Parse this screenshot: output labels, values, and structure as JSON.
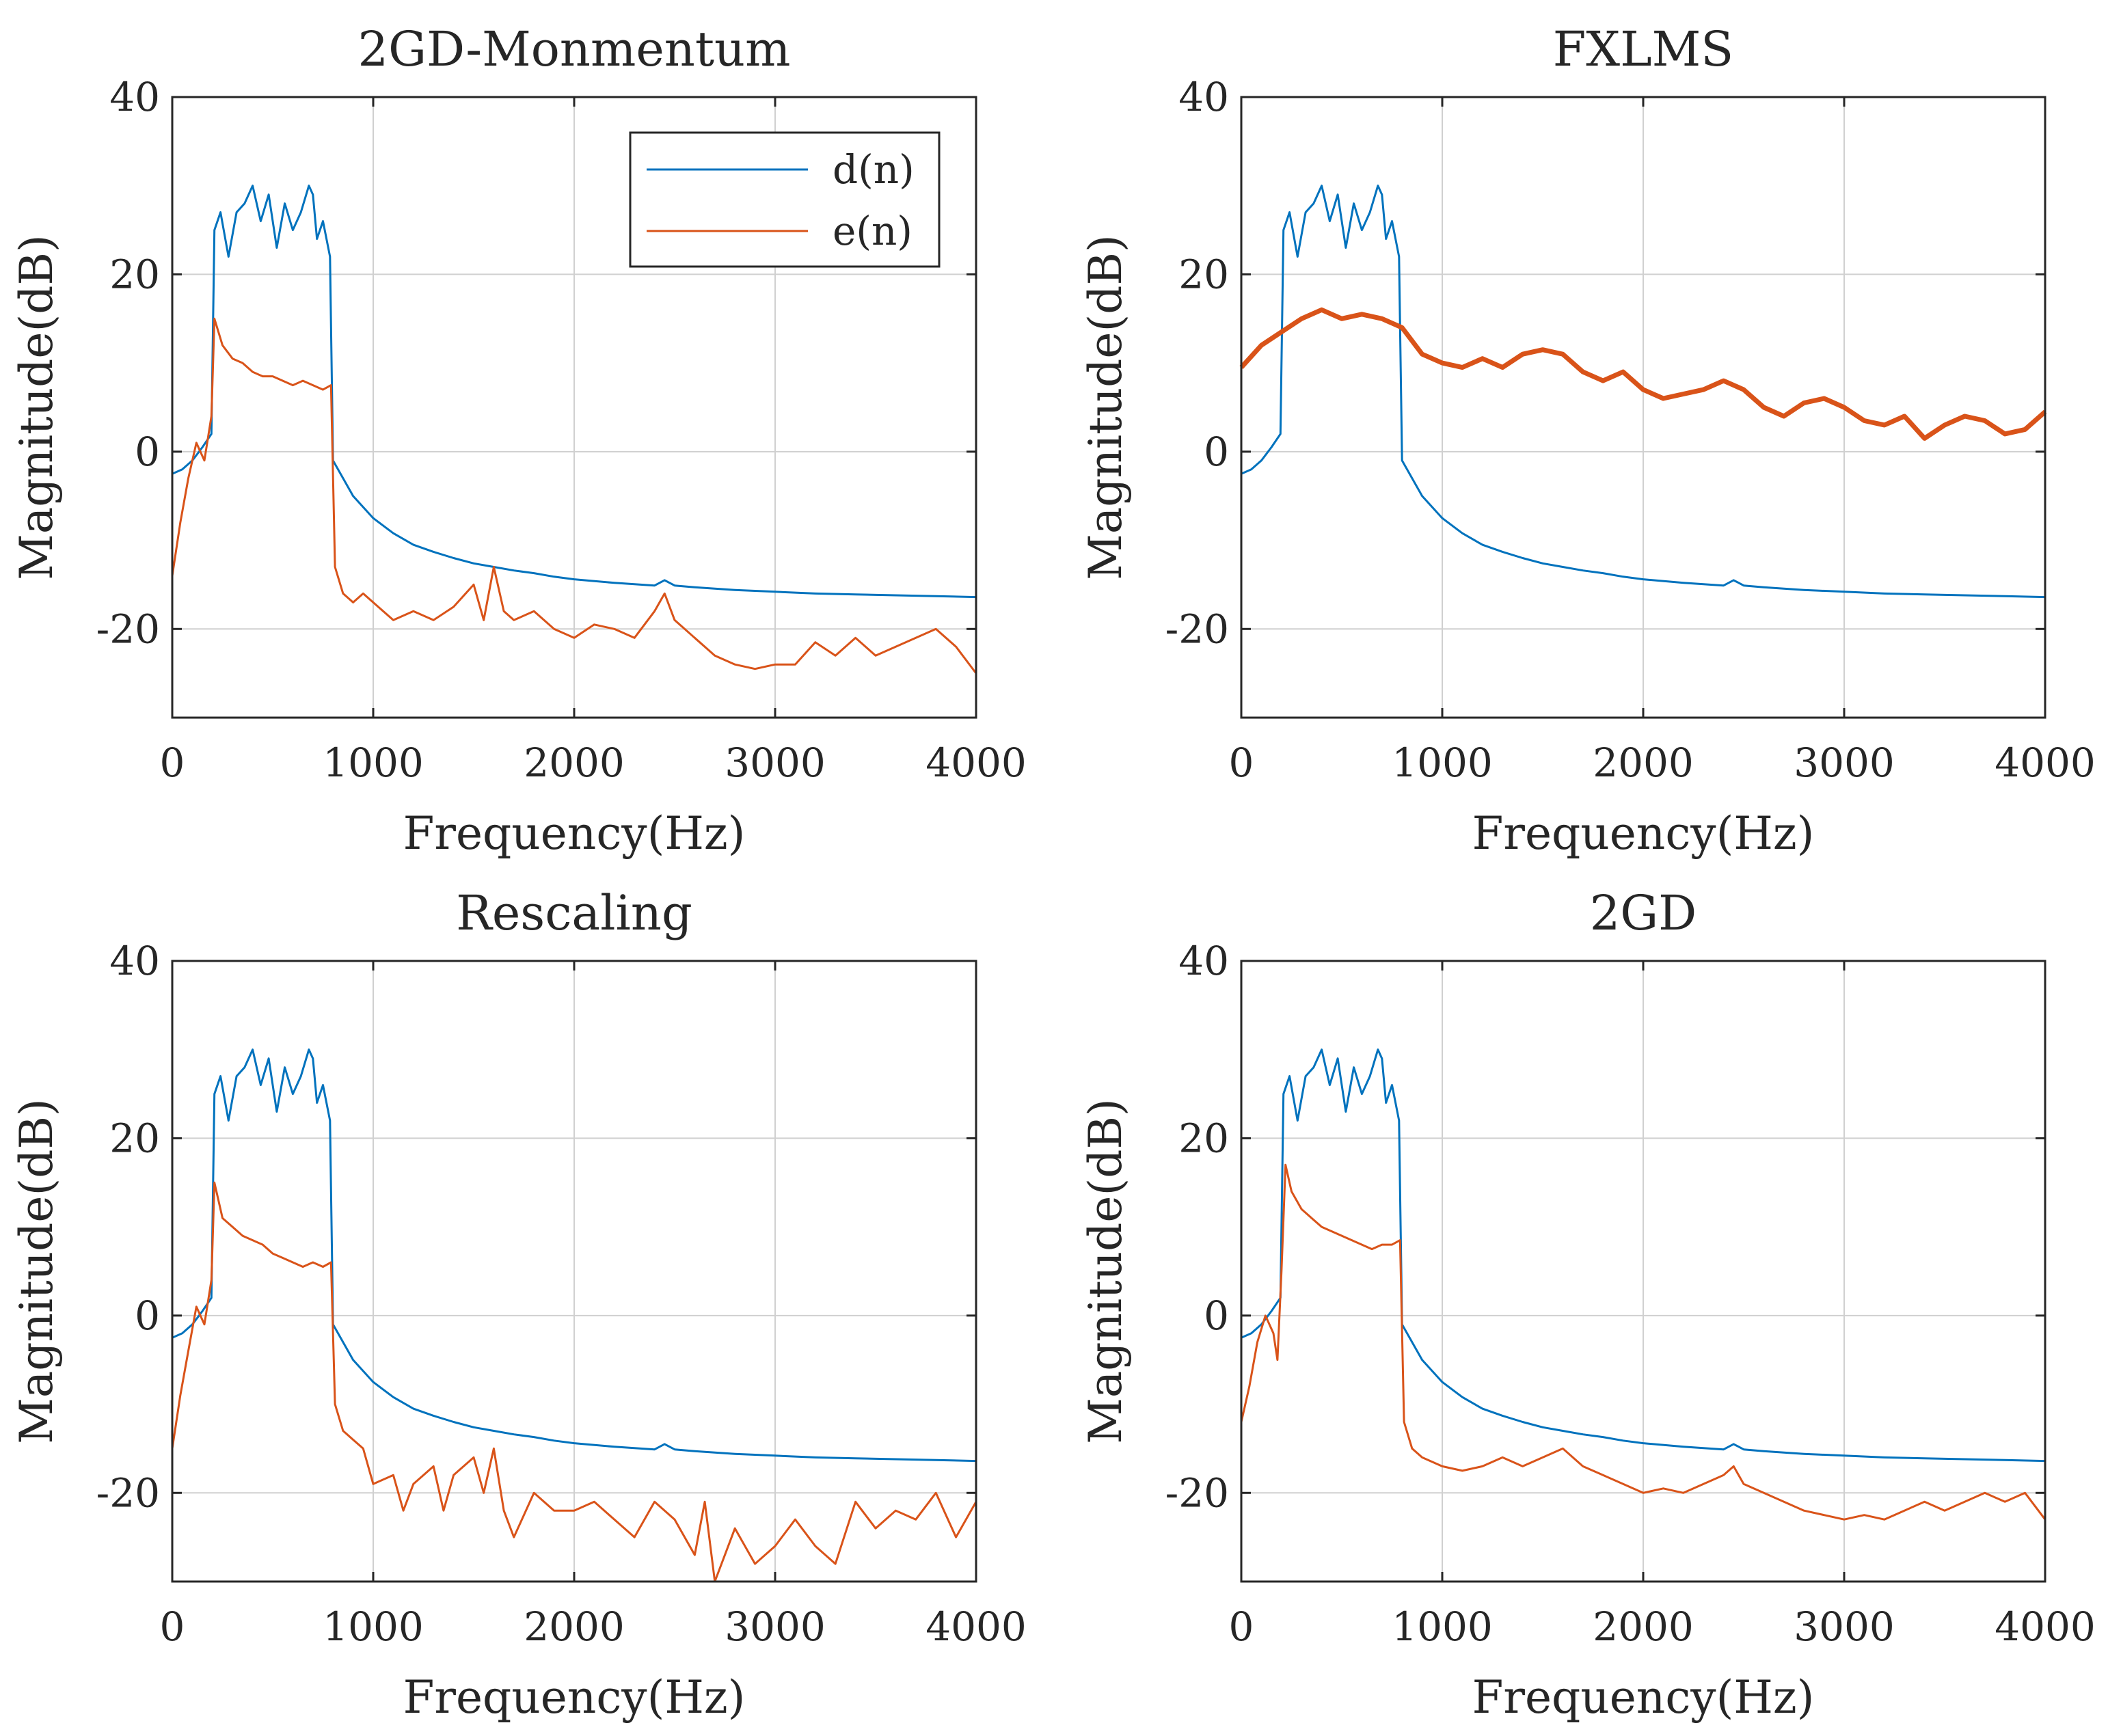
{
  "figure": {
    "colors": {
      "d": "#0072BD",
      "e": "#D95319",
      "grid": "#d0d0d0",
      "axis": "#262626"
    }
  },
  "chart_data": [
    {
      "id": "top-left",
      "type": "line",
      "title": "2GD-Monmentum",
      "xlabel": "Frequency(Hz)",
      "ylabel": "Magnitude(dB)",
      "xlim": [
        0,
        4000
      ],
      "ylim": [
        -30,
        40
      ],
      "xticks": [
        0,
        1000,
        2000,
        3000,
        4000
      ],
      "xtick_labels": [
        "0",
        "1000",
        "2000",
        "3000",
        "4000"
      ],
      "yticks": [
        -20,
        0,
        20,
        40
      ],
      "ytick_labels": [
        "-20",
        "0",
        "20",
        "40"
      ],
      "grid": true,
      "legend": {
        "show": true,
        "position": "top-right",
        "entries": [
          "d(n)",
          "e(n)"
        ]
      },
      "series": [
        {
          "name": "d(n)",
          "color": "#0072BD",
          "x": [
            0,
            50,
            100,
            150,
            195,
            210,
            240,
            280,
            320,
            360,
            400,
            440,
            480,
            520,
            560,
            600,
            640,
            680,
            700,
            720,
            750,
            785,
            800,
            850,
            900,
            1000,
            1100,
            1200,
            1300,
            1400,
            1500,
            1600,
            1700,
            1800,
            1900,
            2000,
            2200,
            2400,
            2450,
            2500,
            2600,
            2800,
            3000,
            3200,
            3400,
            3600,
            3800,
            4000
          ],
          "values": [
            -2.5,
            -2,
            -1,
            0.5,
            2,
            25,
            27,
            22,
            27,
            28,
            30,
            26,
            29,
            23,
            28,
            25,
            27,
            30,
            29,
            24,
            26,
            22,
            -1,
            -3,
            -5,
            -7.5,
            -9.2,
            -10.5,
            -11.3,
            -12,
            -12.6,
            -13,
            -13.4,
            -13.7,
            -14.1,
            -14.4,
            -14.8,
            -15.1,
            -14.5,
            -15.1,
            -15.3,
            -15.6,
            -15.8,
            -16,
            -16.1,
            -16.2,
            -16.3,
            -16.4
          ]
        },
        {
          "name": "e(n)",
          "color": "#D95319",
          "x": [
            0,
            40,
            80,
            120,
            160,
            195,
            210,
            250,
            300,
            350,
            400,
            450,
            500,
            550,
            600,
            650,
            700,
            750,
            790,
            810,
            850,
            900,
            950,
            1000,
            1100,
            1200,
            1300,
            1400,
            1500,
            1550,
            1600,
            1650,
            1700,
            1800,
            1900,
            2000,
            2100,
            2200,
            2300,
            2400,
            2450,
            2500,
            2600,
            2700,
            2800,
            2900,
            3000,
            3100,
            3200,
            3300,
            3400,
            3500,
            3600,
            3700,
            3800,
            3900,
            4000
          ],
          "values": [
            -14,
            -8,
            -3,
            1,
            -1,
            4,
            15,
            12,
            10.5,
            10,
            9,
            8.5,
            8.5,
            8,
            7.5,
            8,
            7.5,
            7,
            7.5,
            -13,
            -16,
            -17,
            -16,
            -17,
            -19,
            -18,
            -19,
            -17.5,
            -15,
            -19,
            -13,
            -18,
            -19,
            -18,
            -20,
            -21,
            -19.5,
            -20,
            -21,
            -18,
            -16,
            -19,
            -21,
            -23,
            -24,
            -24.5,
            -24,
            -24,
            -21.5,
            -23,
            -21,
            -23,
            -22,
            -21,
            -20,
            -22,
            -25
          ]
        }
      ]
    },
    {
      "id": "top-right",
      "type": "line",
      "title": "FXLMS",
      "xlabel": "Frequency(Hz)",
      "ylabel": "Magnitude(dB)",
      "xlim": [
        0,
        4000
      ],
      "ylim": [
        -30,
        40
      ],
      "xticks": [
        0,
        1000,
        2000,
        3000,
        4000
      ],
      "xtick_labels": [
        "0",
        "1000",
        "2000",
        "3000",
        "4000"
      ],
      "yticks": [
        -20,
        0,
        20,
        40
      ],
      "ytick_labels": [
        "-20",
        "0",
        "20",
        "40"
      ],
      "grid": true,
      "legend": {
        "show": false
      },
      "series": [
        {
          "name": "d(n)",
          "color": "#0072BD",
          "x": [
            0,
            50,
            100,
            150,
            195,
            210,
            240,
            280,
            320,
            360,
            400,
            440,
            480,
            520,
            560,
            600,
            640,
            680,
            700,
            720,
            750,
            785,
            800,
            850,
            900,
            1000,
            1100,
            1200,
            1300,
            1400,
            1500,
            1600,
            1700,
            1800,
            1900,
            2000,
            2200,
            2400,
            2450,
            2500,
            2600,
            2800,
            3000,
            3200,
            3400,
            3600,
            3800,
            4000
          ],
          "values": [
            -2.5,
            -2,
            -1,
            0.5,
            2,
            25,
            27,
            22,
            27,
            28,
            30,
            26,
            29,
            23,
            28,
            25,
            27,
            30,
            29,
            24,
            26,
            22,
            -1,
            -3,
            -5,
            -7.5,
            -9.2,
            -10.5,
            -11.3,
            -12,
            -12.6,
            -13,
            -13.4,
            -13.7,
            -14.1,
            -14.4,
            -14.8,
            -15.1,
            -14.5,
            -15.1,
            -15.3,
            -15.6,
            -15.8,
            -16,
            -16.1,
            -16.2,
            -16.3,
            -16.4
          ]
        },
        {
          "name": "e(n)",
          "color": "#D95319",
          "x": [
            0,
            100,
            200,
            300,
            400,
            500,
            600,
            700,
            800,
            900,
            1000,
            1100,
            1200,
            1300,
            1400,
            1500,
            1600,
            1700,
            1800,
            1900,
            2000,
            2100,
            2200,
            2300,
            2400,
            2500,
            2600,
            2700,
            2800,
            2900,
            3000,
            3100,
            3200,
            3300,
            3400,
            3500,
            3600,
            3700,
            3800,
            3900,
            4000
          ],
          "values": [
            9.5,
            12,
            13.5,
            15,
            16,
            15,
            15.5,
            15,
            14,
            11,
            10,
            9.5,
            10.5,
            9.5,
            11,
            11.5,
            11,
            9,
            8,
            9,
            7,
            6,
            6.5,
            7,
            8,
            7,
            5,
            4,
            5.5,
            6,
            5,
            3.5,
            3,
            4,
            1.5,
            3,
            4,
            3.5,
            2,
            2.5,
            4.5
          ]
        }
      ]
    },
    {
      "id": "bottom-left",
      "type": "line",
      "title": "Rescaling",
      "xlabel": "Frequency(Hz)",
      "ylabel": "Magnitude(dB)",
      "xlim": [
        0,
        4000
      ],
      "ylim": [
        -30,
        40
      ],
      "xticks": [
        0,
        1000,
        2000,
        3000,
        4000
      ],
      "xtick_labels": [
        "0",
        "1000",
        "2000",
        "3000",
        "4000"
      ],
      "yticks": [
        -20,
        0,
        20,
        40
      ],
      "ytick_labels": [
        "-20",
        "0",
        "20",
        "40"
      ],
      "grid": true,
      "legend": {
        "show": false
      },
      "series": [
        {
          "name": "d(n)",
          "color": "#0072BD",
          "x": [
            0,
            50,
            100,
            150,
            195,
            210,
            240,
            280,
            320,
            360,
            400,
            440,
            480,
            520,
            560,
            600,
            640,
            680,
            700,
            720,
            750,
            785,
            800,
            850,
            900,
            1000,
            1100,
            1200,
            1300,
            1400,
            1500,
            1600,
            1700,
            1800,
            1900,
            2000,
            2200,
            2400,
            2450,
            2500,
            2600,
            2800,
            3000,
            3200,
            3400,
            3600,
            3800,
            4000
          ],
          "values": [
            -2.5,
            -2,
            -1,
            0.5,
            2,
            25,
            27,
            22,
            27,
            28,
            30,
            26,
            29,
            23,
            28,
            25,
            27,
            30,
            29,
            24,
            26,
            22,
            -1,
            -3,
            -5,
            -7.5,
            -9.2,
            -10.5,
            -11.3,
            -12,
            -12.6,
            -13,
            -13.4,
            -13.7,
            -14.1,
            -14.4,
            -14.8,
            -15.1,
            -14.5,
            -15.1,
            -15.3,
            -15.6,
            -15.8,
            -16,
            -16.1,
            -16.2,
            -16.3,
            -16.4
          ]
        },
        {
          "name": "e(n)",
          "color": "#D95319",
          "x": [
            0,
            40,
            80,
            120,
            160,
            195,
            210,
            250,
            300,
            350,
            400,
            450,
            500,
            550,
            600,
            650,
            700,
            750,
            790,
            810,
            850,
            900,
            950,
            1000,
            1100,
            1150,
            1200,
            1300,
            1350,
            1400,
            1500,
            1550,
            1600,
            1650,
            1700,
            1800,
            1900,
            2000,
            2100,
            2200,
            2300,
            2400,
            2500,
            2600,
            2650,
            2700,
            2800,
            2900,
            3000,
            3100,
            3200,
            3300,
            3400,
            3500,
            3600,
            3700,
            3800,
            3900,
            4000
          ],
          "values": [
            -15,
            -9,
            -4,
            1,
            -1,
            4,
            15,
            11,
            10,
            9,
            8.5,
            8,
            7,
            6.5,
            6,
            5.5,
            6,
            5.5,
            6,
            -10,
            -13,
            -14,
            -15,
            -19,
            -18,
            -22,
            -19,
            -17,
            -22,
            -18,
            -16,
            -20,
            -15,
            -22,
            -25,
            -20,
            -22,
            -22,
            -21,
            -23,
            -25,
            -21,
            -23,
            -27,
            -21,
            -30,
            -24,
            -28,
            -26,
            -23,
            -26,
            -28,
            -21,
            -24,
            -22,
            -23,
            -20,
            -25,
            -21
          ]
        }
      ]
    },
    {
      "id": "bottom-right",
      "type": "line",
      "title": "2GD",
      "xlabel": "Frequency(Hz)",
      "ylabel": "Magnitude(dB)",
      "xlim": [
        0,
        4000
      ],
      "ylim": [
        -30,
        40
      ],
      "xticks": [
        0,
        1000,
        2000,
        3000,
        4000
      ],
      "xtick_labels": [
        "0",
        "1000",
        "2000",
        "3000",
        "4000"
      ],
      "yticks": [
        -20,
        0,
        20,
        40
      ],
      "ytick_labels": [
        "-20",
        "0",
        "20",
        "40"
      ],
      "grid": true,
      "legend": {
        "show": false
      },
      "series": [
        {
          "name": "d(n)",
          "color": "#0072BD",
          "x": [
            0,
            50,
            100,
            150,
            195,
            210,
            240,
            280,
            320,
            360,
            400,
            440,
            480,
            520,
            560,
            600,
            640,
            680,
            700,
            720,
            750,
            785,
            800,
            850,
            900,
            1000,
            1100,
            1200,
            1300,
            1400,
            1500,
            1600,
            1700,
            1800,
            1900,
            2000,
            2200,
            2400,
            2450,
            2500,
            2600,
            2800,
            3000,
            3200,
            3400,
            3600,
            3800,
            4000
          ],
          "values": [
            -2.5,
            -2,
            -1,
            0.5,
            2,
            25,
            27,
            22,
            27,
            28,
            30,
            26,
            29,
            23,
            28,
            25,
            27,
            30,
            29,
            24,
            26,
            22,
            -1,
            -3,
            -5,
            -7.5,
            -9.2,
            -10.5,
            -11.3,
            -12,
            -12.6,
            -13,
            -13.4,
            -13.7,
            -14.1,
            -14.4,
            -14.8,
            -15.1,
            -14.5,
            -15.1,
            -15.3,
            -15.6,
            -15.8,
            -16,
            -16.1,
            -16.2,
            -16.3,
            -16.4
          ]
        },
        {
          "name": "e(n)",
          "color": "#D95319",
          "x": [
            0,
            40,
            80,
            120,
            160,
            180,
            200,
            220,
            250,
            300,
            350,
            400,
            450,
            500,
            550,
            600,
            650,
            700,
            750,
            790,
            810,
            850,
            900,
            1000,
            1100,
            1200,
            1300,
            1400,
            1500,
            1600,
            1700,
            1800,
            1900,
            2000,
            2100,
            2200,
            2300,
            2400,
            2450,
            2500,
            2600,
            2700,
            2800,
            2900,
            3000,
            3100,
            3200,
            3300,
            3400,
            3500,
            3600,
            3700,
            3800,
            3900,
            4000
          ],
          "values": [
            -12,
            -8,
            -3,
            0,
            -2,
            -5,
            5,
            17,
            14,
            12,
            11,
            10,
            9.5,
            9,
            8.5,
            8,
            7.5,
            8,
            8,
            8.5,
            -12,
            -15,
            -16,
            -17,
            -17.5,
            -17,
            -16,
            -17,
            -16,
            -15,
            -17,
            -18,
            -19,
            -20,
            -19.5,
            -20,
            -19,
            -18,
            -17,
            -19,
            -20,
            -21,
            -22,
            -22.5,
            -23,
            -22.5,
            -23,
            -22,
            -21,
            -22,
            -21,
            -20,
            -21,
            -20,
            -23
          ]
        }
      ]
    }
  ]
}
